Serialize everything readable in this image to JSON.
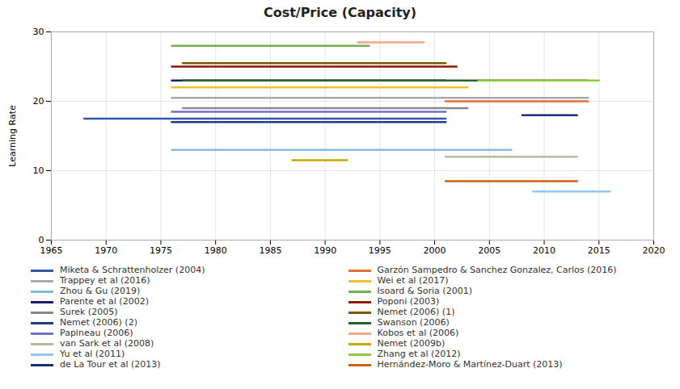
{
  "chart_data": {
    "type": "line",
    "title": "Cost/Price (Capacity)",
    "ylabel": "Learning Rate",
    "xlim": [
      1965,
      2020
    ],
    "ylim": [
      0,
      30
    ],
    "xticks": [
      1965,
      1970,
      1975,
      1980,
      1985,
      1990,
      1995,
      2000,
      2005,
      2010,
      2015,
      2020
    ],
    "yticks": [
      0,
      10,
      20,
      30
    ],
    "grid": true,
    "legend": "bottom",
    "series": [
      {
        "name": "Miketa & Schrattenholzer (2004)",
        "color": "#3355aa",
        "x": [
          1968,
          2001
        ],
        "values": [
          17.5,
          17.5
        ]
      },
      {
        "name": "Trappey et al (2016)",
        "color": "#aaaaaa",
        "x": [
          1976,
          2014
        ],
        "values": [
          20.5,
          20.5
        ]
      },
      {
        "name": "Zhou & Gu (2019)",
        "color": "#80bce0",
        "x": [
          1976,
          2007
        ],
        "values": [
          13.0,
          13.0
        ]
      },
      {
        "name": "Parente et al (2002)",
        "color": "#1a1a6e",
        "x": [
          1976,
          2001
        ],
        "values": [
          23.0,
          23.0
        ]
      },
      {
        "name": "Surek (2005)",
        "color": "#888888",
        "x": [
          1977,
          2003
        ],
        "values": [
          19.0,
          19.0
        ]
      },
      {
        "name": "Nemet (2006) (2)",
        "color": "#1e3a8a",
        "x": [
          1976,
          2001
        ],
        "values": [
          17.0,
          17.0
        ]
      },
      {
        "name": "Papineau (2006)",
        "color": "#7070c8",
        "x": [
          1976,
          2001
        ],
        "values": [
          18.5,
          18.5
        ]
      },
      {
        "name": "van Sark et al (2008)",
        "color": "#b8b8a0",
        "x": [
          2001,
          2013
        ],
        "values": [
          12.0,
          12.0
        ]
      },
      {
        "name": "Yu et al (2011)",
        "color": "#90c8f0",
        "x": [
          2009,
          2016
        ],
        "values": [
          7.0,
          7.0
        ]
      },
      {
        "name": "de La Tour et al (2013)",
        "color": "#1c2e70",
        "x": [
          2008,
          2013
        ],
        "values": [
          18.0,
          18.0
        ]
      },
      {
        "name": "Garzón Sampedro & Sanchez Gonzalez, Carlos (2016)",
        "color": "#e07030",
        "x": [
          2001,
          2014
        ],
        "values": [
          20.0,
          20.0
        ]
      },
      {
        "name": "Wei et al (2017)",
        "color": "#f0c030",
        "x": [
          1976,
          2003
        ],
        "values": [
          22.0,
          22.0
        ]
      },
      {
        "name": "Isoard & Soria (2001)",
        "color": "#70b050",
        "x": [
          1976,
          1994
        ],
        "values": [
          28.0,
          28.0
        ]
      },
      {
        "name": "Poponi (2003)",
        "color": "#8b1a00",
        "x": [
          1976,
          2002
        ],
        "values": [
          25.0,
          25.0
        ]
      },
      {
        "name": "Nemet (2006) (1)",
        "color": "#7a5800",
        "x": [
          1977,
          2001
        ],
        "values": [
          25.5,
          25.5
        ]
      },
      {
        "name": "Swanson (2006)",
        "color": "#2a6030",
        "x": [
          1977,
          2014
        ],
        "values": [
          23.0,
          23.0
        ]
      },
      {
        "name": "Kobos et al (2006)",
        "color": "#f0a880",
        "x": [
          1993,
          1999
        ],
        "values": [
          28.5,
          28.5
        ]
      },
      {
        "name": "Nemet (2009b)",
        "color": "#c8a800",
        "x": [
          1987,
          1992
        ],
        "values": [
          11.5,
          11.5
        ]
      },
      {
        "name": "Zhang et al (2012)",
        "color": "#8ec840",
        "x": [
          2004,
          2015
        ],
        "values": [
          23.0,
          23.0
        ]
      },
      {
        "name": "Hernández-Moro & Martínez-Duart (2013)",
        "color": "#d06010",
        "x": [
          2001,
          2013
        ],
        "values": [
          8.5,
          8.5
        ]
      }
    ]
  }
}
